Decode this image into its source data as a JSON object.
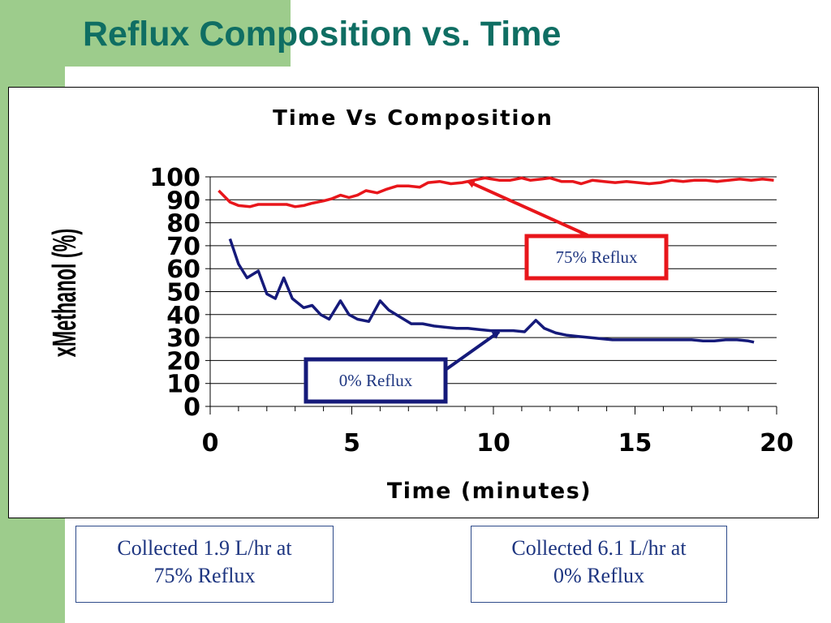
{
  "slide": {
    "title": "Reflux Composition vs. Time",
    "note_left": {
      "line1": "Collected 1.9 L/hr at",
      "line2": "75% Reflux"
    },
    "note_right": {
      "line1": "Collected 6.1 L/hr at",
      "line2": "0% Reflux"
    }
  },
  "colors": {
    "slide_green": "#9dcc8c",
    "title_teal": "#0f6e63",
    "series_red": "#e8161b",
    "series_navy": "#151a7a",
    "note_text": "#1d3580"
  },
  "chart_data": {
    "type": "line",
    "title": "Time Vs Composition",
    "xlabel": "Time (minutes)",
    "ylabel": "xMethanol (%)",
    "xlim": [
      0,
      20
    ],
    "ylim": [
      0,
      100
    ],
    "xticks": [
      "0",
      "5",
      "10",
      "15",
      "20"
    ],
    "yticks": [
      "0",
      "10",
      "20",
      "30",
      "40",
      "50",
      "60",
      "70",
      "80",
      "90",
      "100"
    ],
    "grid": "horizontal",
    "series": [
      {
        "color": "#e8161b",
        "x": [
          0.3,
          0.7,
          1.0,
          1.4,
          1.7,
          2.0,
          2.5,
          2.7,
          3.0,
          3.3,
          3.6,
          4.0,
          4.3,
          4.6,
          4.9,
          5.2,
          5.5,
          5.9,
          6.2,
          6.6,
          7.0,
          7.4,
          7.7,
          8.1,
          8.5,
          8.9,
          9.3,
          9.7,
          10.2,
          10.6,
          11.0,
          11.3,
          11.7,
          12.0,
          12.4,
          12.8,
          13.1,
          13.5,
          13.9,
          14.3,
          14.7,
          15.1,
          15.5,
          15.9,
          16.3,
          16.7,
          17.1,
          17.5,
          17.9,
          18.3,
          18.7,
          19.1,
          19.5,
          19.9
        ],
        "y": [
          94,
          89,
          87.5,
          87,
          88,
          88,
          88,
          88,
          87,
          87.5,
          88.5,
          89.5,
          90.5,
          92,
          91,
          92,
          94,
          93,
          94.5,
          96,
          96,
          95.5,
          97.5,
          98,
          97,
          97.5,
          98.5,
          99.5,
          98.5,
          98.5,
          99.5,
          98.5,
          99,
          99.5,
          98,
          98,
          97,
          98.5,
          98,
          97.5,
          98,
          97.5,
          97,
          97.5,
          98.5,
          98,
          98.5,
          98.5,
          98,
          98.5,
          99,
          98.5,
          99,
          98.5
        ]
      },
      {
        "color": "#151a7a",
        "x": [
          0.7,
          1.0,
          1.3,
          1.7,
          2.0,
          2.3,
          2.6,
          2.9,
          3.3,
          3.6,
          3.9,
          4.2,
          4.6,
          4.9,
          5.2,
          5.6,
          6.0,
          6.3,
          6.7,
          7.1,
          7.5,
          7.9,
          8.3,
          8.7,
          9.1,
          9.5,
          9.9,
          10.3,
          10.7,
          11.1,
          11.5,
          11.8,
          12.2,
          12.6,
          13.0,
          13.4,
          13.8,
          14.2,
          14.6,
          15.0,
          15.4,
          15.8,
          16.2,
          16.6,
          17.0,
          17.4,
          17.8,
          18.2,
          18.6,
          19.0,
          19.2
        ],
        "y": [
          73,
          62,
          56,
          59,
          49,
          47,
          56,
          47,
          43,
          44,
          40,
          38,
          46,
          40,
          38,
          37,
          46,
          42,
          39,
          36,
          36,
          35,
          34.5,
          34,
          34,
          33.5,
          33,
          33,
          33,
          32.5,
          37.5,
          34,
          32,
          31,
          30.5,
          30,
          29.5,
          29,
          29,
          29,
          29,
          29,
          29,
          29,
          29,
          28.5,
          28.5,
          29,
          29,
          28.5,
          28
        ]
      }
    ],
    "annotations": [
      {
        "text": "75% Reflux",
        "color": "#e8161b",
        "points_to": [
          9.1,
          98
        ]
      },
      {
        "text": "0% Reflux",
        "color": "#151a7a",
        "points_to": [
          10.2,
          32.5
        ]
      }
    ]
  }
}
